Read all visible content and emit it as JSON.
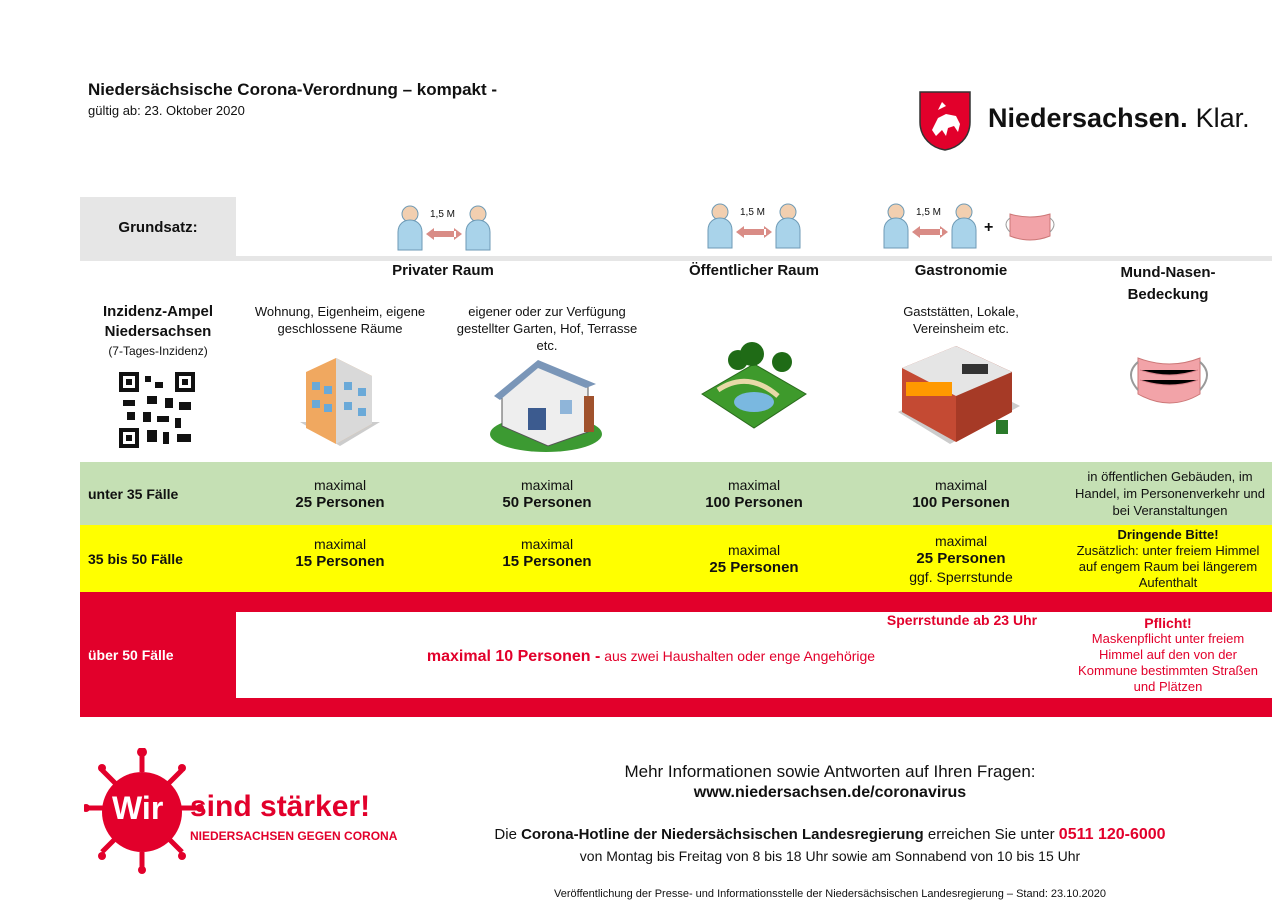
{
  "header": {
    "title": "Niedersächsische Corona-Verordnung – kompakt -",
    "valid_from": "gültig ab: 23. Oktober 2020",
    "logo_text": "Niedersachsen.",
    "logo_text2": "Klar."
  },
  "grundsatz": {
    "label": "Grundsatz:",
    "distance": "1,5 M",
    "plus": "+"
  },
  "columns": [
    {
      "title": "Privater Raum",
      "desc1": "Wohnung, Eigenheim, eigene geschlossene Räume",
      "desc2": "eigener oder zur Verfügung gestellter Garten, Hof, Terrasse etc."
    },
    {
      "title": "Öffentlicher Raum"
    },
    {
      "title": "Gastronomie",
      "desc": "Gaststätten, Lokale, Vereinsheim etc."
    },
    {
      "title": "Mund-Nasen-Bedeckung"
    }
  ],
  "ampel": {
    "title": "Inzidenz-Ampel Niedersachsen",
    "subtitle": "(7-Tages-Inzidenz)"
  },
  "rows": {
    "green": {
      "label": "unter 35 Fälle",
      "color": "#c5e0b4",
      "c1a": "maximal",
      "c1b": "25 Personen",
      "c2a": "maximal",
      "c2b": "50 Personen",
      "c3a": "maximal",
      "c3b": "100 Personen",
      "c4a": "maximal",
      "c4b": "100 Personen",
      "mask": "in öffentlichen Gebäuden, im Handel, im Personenverkehr und bei Veranstaltungen"
    },
    "yellow": {
      "label": "35 bis 50 Fälle",
      "color": "#ffff00",
      "c1a": "maximal",
      "c1b": "15 Personen",
      "c2a": "maximal",
      "c2b": "15 Personen",
      "c3a": "maximal",
      "c3b": "25 Personen",
      "c4a": "maximal",
      "c4b": "25 Personen",
      "c4c": "ggf. Sperrstunde",
      "mask_title": "Dringende Bitte!",
      "mask": "Zusätzlich: unter freiem Himmel auf engem Raum bei längerem Aufenthalt"
    },
    "red": {
      "label": "über 50 Fälle",
      "color": "#e2002b",
      "sperrstunde": "Sperrstunde ab 23 Uhr",
      "main_bold": "maximal 10 Personen -",
      "main_rest": "aus zwei Haushalten oder enge Angehörige",
      "mask_title": "Pflicht!",
      "mask": "Maskenpflicht unter freiem Himmel auf den von der Kommune bestimmten Straßen und Plätzen"
    }
  },
  "footer": {
    "logo_wir": "Wir",
    "logo_main": "sind stärker!",
    "logo_sub": "NIEDERSACHSEN GEGEN CORONA",
    "info": "Mehr Informationen sowie Antworten auf Ihren Fragen:",
    "url": "www.niedersachsen.de/coronavirus",
    "hotline_pre": "Die",
    "hotline_bold": "Corona-Hotline der Niedersächsischen Landesregierung",
    "hotline_mid": "erreichen Sie unter",
    "phone": "0511 120-6000",
    "hours": "von Montag bis Freitag von 8 bis 18 Uhr sowie am Sonnabend von 10 bis 15 Uhr",
    "credit": "Veröffentlichung der Presse- und Informationsstelle der Niedersächsischen Landesregierung – Stand: 23.10.2020"
  }
}
